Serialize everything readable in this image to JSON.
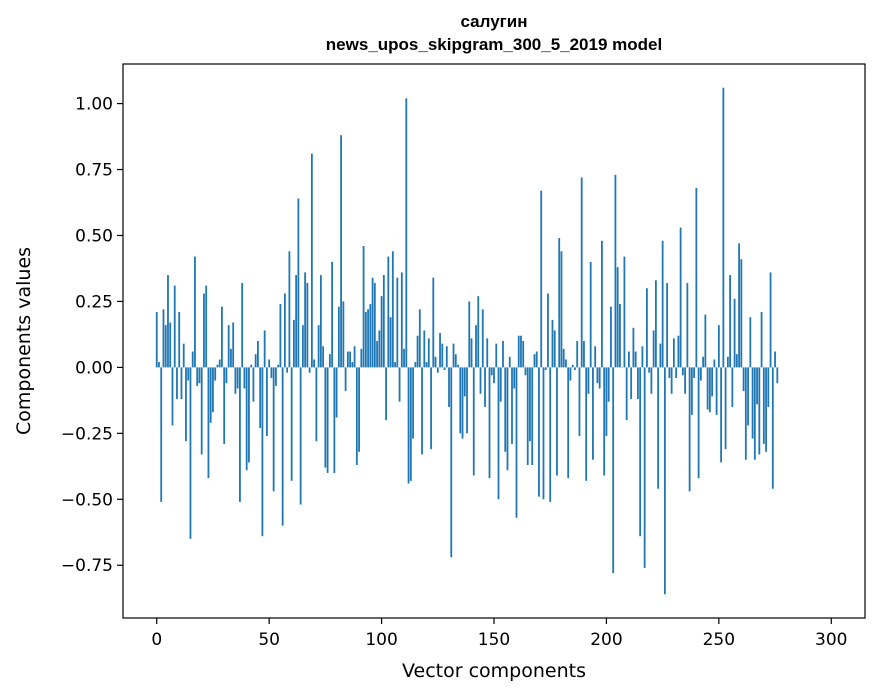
{
  "chart_data": {
    "type": "bar",
    "title": "салугин",
    "subtitle": "news_upos_skipgram_300_5_2019 model",
    "xlabel": "Vector components",
    "ylabel": "Components values",
    "xlim": [
      -15,
      315
    ],
    "ylim": [
      -0.95,
      1.15
    ],
    "xticks": [
      0,
      50,
      100,
      150,
      200,
      250,
      300
    ],
    "yticks": [
      -0.75,
      -0.5,
      -0.25,
      0.0,
      0.25,
      0.5,
      0.75,
      1.0
    ],
    "ytick_labels": [
      "−0.75",
      "−0.50",
      "−0.25",
      "0.00",
      "0.25",
      "0.50",
      "0.75",
      "1.00"
    ],
    "grid": false,
    "bar_color": "#1f77b4",
    "values": [
      0.21,
      0.02,
      -0.51,
      0.22,
      0.16,
      0.35,
      0.17,
      -0.22,
      0.31,
      -0.12,
      0.21,
      -0.12,
      0.09,
      -0.28,
      -0.05,
      -0.65,
      0.06,
      0.42,
      -0.07,
      -0.06,
      -0.33,
      0.28,
      0.31,
      -0.42,
      -0.21,
      -0.17,
      -0.05,
      0.01,
      0.03,
      0.23,
      -0.29,
      -0.06,
      0.16,
      0.07,
      0.17,
      -0.1,
      -0.08,
      -0.51,
      0.32,
      -0.08,
      -0.39,
      -0.36,
      0.01,
      -0.13,
      0.05,
      0.1,
      -0.23,
      -0.64,
      0.14,
      -0.26,
      0.03,
      -0.04,
      -0.47,
      -0.07,
      0.01,
      0.24,
      -0.6,
      0.28,
      -0.02,
      0.44,
      -0.43,
      0.18,
      0.35,
      0.64,
      -0.52,
      0.16,
      0.36,
      0.32,
      -0.02,
      0.81,
      0.03,
      -0.28,
      0.16,
      0.35,
      0.08,
      -0.38,
      -0.4,
      0.05,
      0.4,
      -0.4,
      -0.19,
      0.23,
      0.88,
      0.25,
      -0.09,
      0.06,
      0.06,
      0.02,
      0.08,
      -0.37,
      -0.32,
      0.07,
      0.46,
      0.21,
      0.22,
      0.24,
      0.34,
      0.32,
      0.1,
      0.14,
      0.27,
      0.35,
      -0.2,
      0.42,
      0.19,
      0.44,
      0.02,
      0.34,
      -0.13,
      0.36,
      0.07,
      1.02,
      -0.44,
      -0.43,
      -0.27,
      0.02,
      0.12,
      0.22,
      -0.33,
      0.14,
      0.02,
      0.11,
      -0.31,
      0.34,
      0.04,
      -0.02,
      0.13,
      0.09,
      -0.01,
      0.08,
      -0.15,
      -0.72,
      0.09,
      0.05,
      0.01,
      -0.25,
      -0.27,
      -0.11,
      -0.25,
      0.25,
      0.11,
      -0.41,
      0.16,
      0.27,
      -0.1,
      0.22,
      -0.15,
      0.11,
      -0.42,
      -0.03,
      -0.06,
      0.09,
      -0.5,
      -0.13,
      0.1,
      -0.32,
      -0.39,
      0.04,
      -0.29,
      -0.08,
      -0.57,
      0.12,
      0.12,
      0.1,
      -0.03,
      -0.37,
      -0.28,
      -0.37,
      0.05,
      0.06,
      -0.49,
      0.67,
      -0.5,
      -0.01,
      0.28,
      -0.51,
      0.18,
      0.14,
      -0.41,
      0.49,
      0.44,
      0.07,
      0.03,
      -0.42,
      -0.05,
      0.01,
      -0.01,
      0.1,
      -0.26,
      0.72,
      0.1,
      -0.43,
      -0.1,
      0.4,
      -0.35,
      0.08,
      -0.06,
      -0.08,
      0.48,
      -0.41,
      -0.26,
      -0.13,
      0.23,
      -0.78,
      0.73,
      0.38,
      0.24,
      0.0,
      0.42,
      -0.2,
      0.06,
      -0.12,
      0.15,
      0.06,
      -0.12,
      -0.64,
      0.08,
      -0.76,
      0.3,
      -0.02,
      -0.1,
      0.14,
      0.33,
      -0.46,
      0.09,
      0.48,
      -0.86,
      0.32,
      -0.04,
      -0.1,
      0.11,
      -0.04,
      0.12,
      0.53,
      -0.03,
      -0.1,
      0.32,
      -0.47,
      -0.18,
      -0.04,
      0.68,
      -0.42,
      -0.05,
      0.04,
      0.2,
      -0.16,
      -0.17,
      -0.11,
      0.03,
      -0.18,
      0.16,
      -0.36,
      1.06,
      -0.31,
      0.04,
      0.35,
      -0.15,
      0.26,
      0.05,
      0.47,
      0.41,
      -0.09,
      -0.35,
      -0.22,
      0.19,
      -0.27,
      -0.35,
      -0.14,
      -0.33,
      0.21,
      -0.29,
      -0.32,
      -0.15,
      0.36,
      -0.46,
      0.06,
      -0.06
    ]
  }
}
